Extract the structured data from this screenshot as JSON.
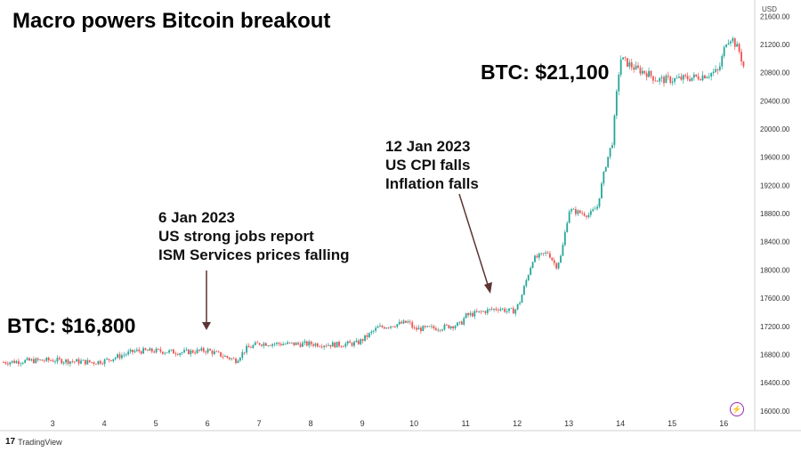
{
  "title": "Macro powers Bitcoin breakout",
  "callouts": {
    "start_price": "BTC: $16,800",
    "end_price": "BTC: $21,100"
  },
  "annotations": [
    {
      "lines": [
        "6 Jan 2023",
        "US strong jobs report",
        "ISM Services prices falling"
      ]
    },
    {
      "lines": [
        "12 Jan 2023",
        "US CPI falls",
        "Inflation falls"
      ]
    }
  ],
  "branding": {
    "logo_mark": "17",
    "logo_text": "TradingView"
  },
  "icons": {
    "bolt": "lightning-icon"
  },
  "colors": {
    "up": "#26a69a",
    "down": "#ef5350",
    "arrow": "#5d3434",
    "bolt": "#9c27b0"
  },
  "chart_data": {
    "type": "candlestick",
    "currency": "USD",
    "ylim": [
      15720,
      21780
    ],
    "yticks": [
      "16000.00",
      "16400.00",
      "16800.00",
      "17200.00",
      "17600.00",
      "18000.00",
      "18400.00",
      "18800.00",
      "19200.00",
      "19600.00",
      "20000.00",
      "20400.00",
      "20800.00",
      "21200.00",
      "21600.00"
    ],
    "xticks": [
      "3",
      "4",
      "5",
      "6",
      "7",
      "8",
      "9",
      "10",
      "11",
      "12",
      "13",
      "14",
      "15",
      "16"
    ],
    "xlim": [
      2.05,
      16.6
    ],
    "series": [
      {
        "anchors_x": [
          2.05,
          2.5,
          3.0,
          3.5,
          3.8,
          4.0,
          4.3,
          4.6,
          5.0,
          5.5,
          6.0,
          6.3,
          6.55,
          6.75,
          7.0,
          7.5,
          8.0,
          8.5,
          8.9,
          9.0,
          9.3,
          9.6,
          9.9,
          10.0,
          10.5,
          10.9,
          11.0,
          11.4,
          11.65,
          11.8,
          11.95,
          12.05,
          12.3,
          12.6,
          12.75,
          12.85,
          13.0,
          13.4,
          13.55,
          13.7,
          13.85,
          13.95,
          14.0,
          14.3,
          14.5,
          14.7,
          15.0,
          15.5,
          15.9,
          16.05,
          16.15,
          16.3,
          16.4
        ],
        "anchors_y": [
          16690,
          16710,
          16720,
          16700,
          16690,
          16710,
          16780,
          16850,
          16850,
          16830,
          16860,
          16780,
          16720,
          16880,
          16960,
          16950,
          16950,
          16940,
          16960,
          17010,
          17180,
          17220,
          17260,
          17160,
          17180,
          17230,
          17350,
          17420,
          17460,
          17420,
          17420,
          17550,
          18150,
          18250,
          18050,
          18200,
          18850,
          18780,
          18900,
          19450,
          19850,
          20700,
          21000,
          20850,
          20800,
          20700,
          20700,
          20740,
          20820,
          21250,
          21300,
          21100,
          20850
        ]
      }
    ]
  }
}
